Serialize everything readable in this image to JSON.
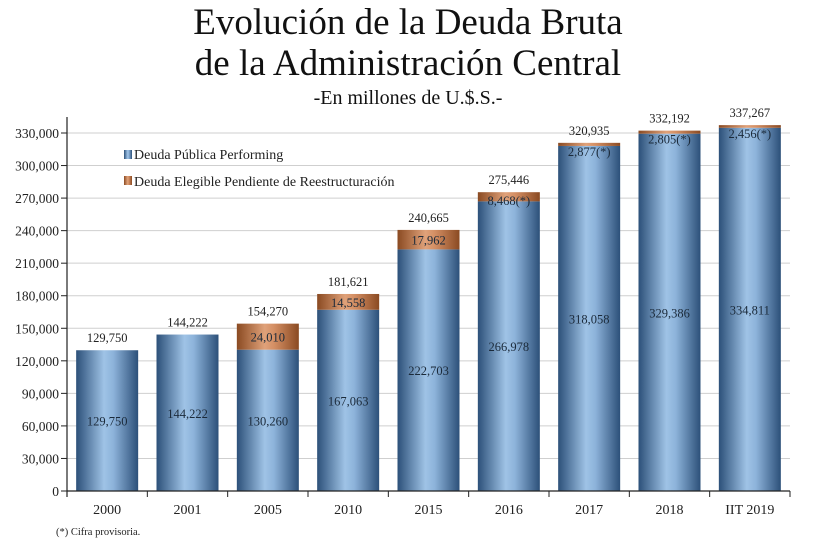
{
  "header": {
    "title_line1": "Evolución de la Deuda Bruta",
    "title_line2": "de la Administración Central",
    "subtitle": "-En millones de U.$.S.-"
  },
  "footnote": "(*) Cifra provisoria.",
  "colors": {
    "performing_dark": "#2c5079",
    "performing_light": "#9fc3e6",
    "elegible_dark": "#8a4a22",
    "elegible_light": "#e0a27a",
    "grid": "#cfcfcf",
    "axis": "#222222"
  },
  "chart_data": {
    "type": "bar",
    "stacked": true,
    "title": "Evolución de la Deuda Bruta de la Administración Central",
    "subtitle": "-En millones de U.$.S.-",
    "xlabel": "",
    "ylabel": "",
    "ylim": [
      0,
      330000
    ],
    "yticks": [
      0,
      30000,
      60000,
      90000,
      120000,
      150000,
      180000,
      210000,
      240000,
      270000,
      300000,
      330000
    ],
    "ytick_labels": [
      "0",
      "30,000",
      "60,000",
      "90,000",
      "120,000",
      "150,000",
      "180,000",
      "210,000",
      "240,000",
      "270,000",
      "300,000",
      "330,000"
    ],
    "grid": true,
    "legend_position": "top-left",
    "categories": [
      "2000",
      "2001",
      "2005",
      "2010",
      "2015",
      "2016",
      "2017",
      "2018",
      "IIT 2019"
    ],
    "series": [
      {
        "name": "Deuda Pública Performing",
        "values": [
          129750,
          144222,
          130260,
          167063,
          222703,
          266978,
          318058,
          329386,
          334811
        ],
        "labels": [
          "129,750",
          "144,222",
          "130,260",
          "167,063",
          "222,703",
          "266,978",
          "318,058",
          "329,386",
          "334,811"
        ]
      },
      {
        "name": "Deuda Elegible Pendiente de Reestructuración",
        "values": [
          0,
          0,
          24010,
          14558,
          17962,
          8468,
          2877,
          2805,
          2456
        ],
        "labels": [
          "",
          "",
          "24,010",
          "14,558",
          "17,962",
          "8,468(*)",
          "2,877(*)",
          "2,805(*)",
          "2,456(*)"
        ]
      }
    ],
    "totals": [
      129750,
      144222,
      154270,
      181621,
      240665,
      275446,
      320935,
      332192,
      337267
    ],
    "total_labels": [
      "129,750",
      "144,222",
      "154,270",
      "181,621",
      "240,665",
      "275,446",
      "320,935",
      "332,192",
      "337,267"
    ],
    "footnote": "(*) Cifra provisoria."
  }
}
